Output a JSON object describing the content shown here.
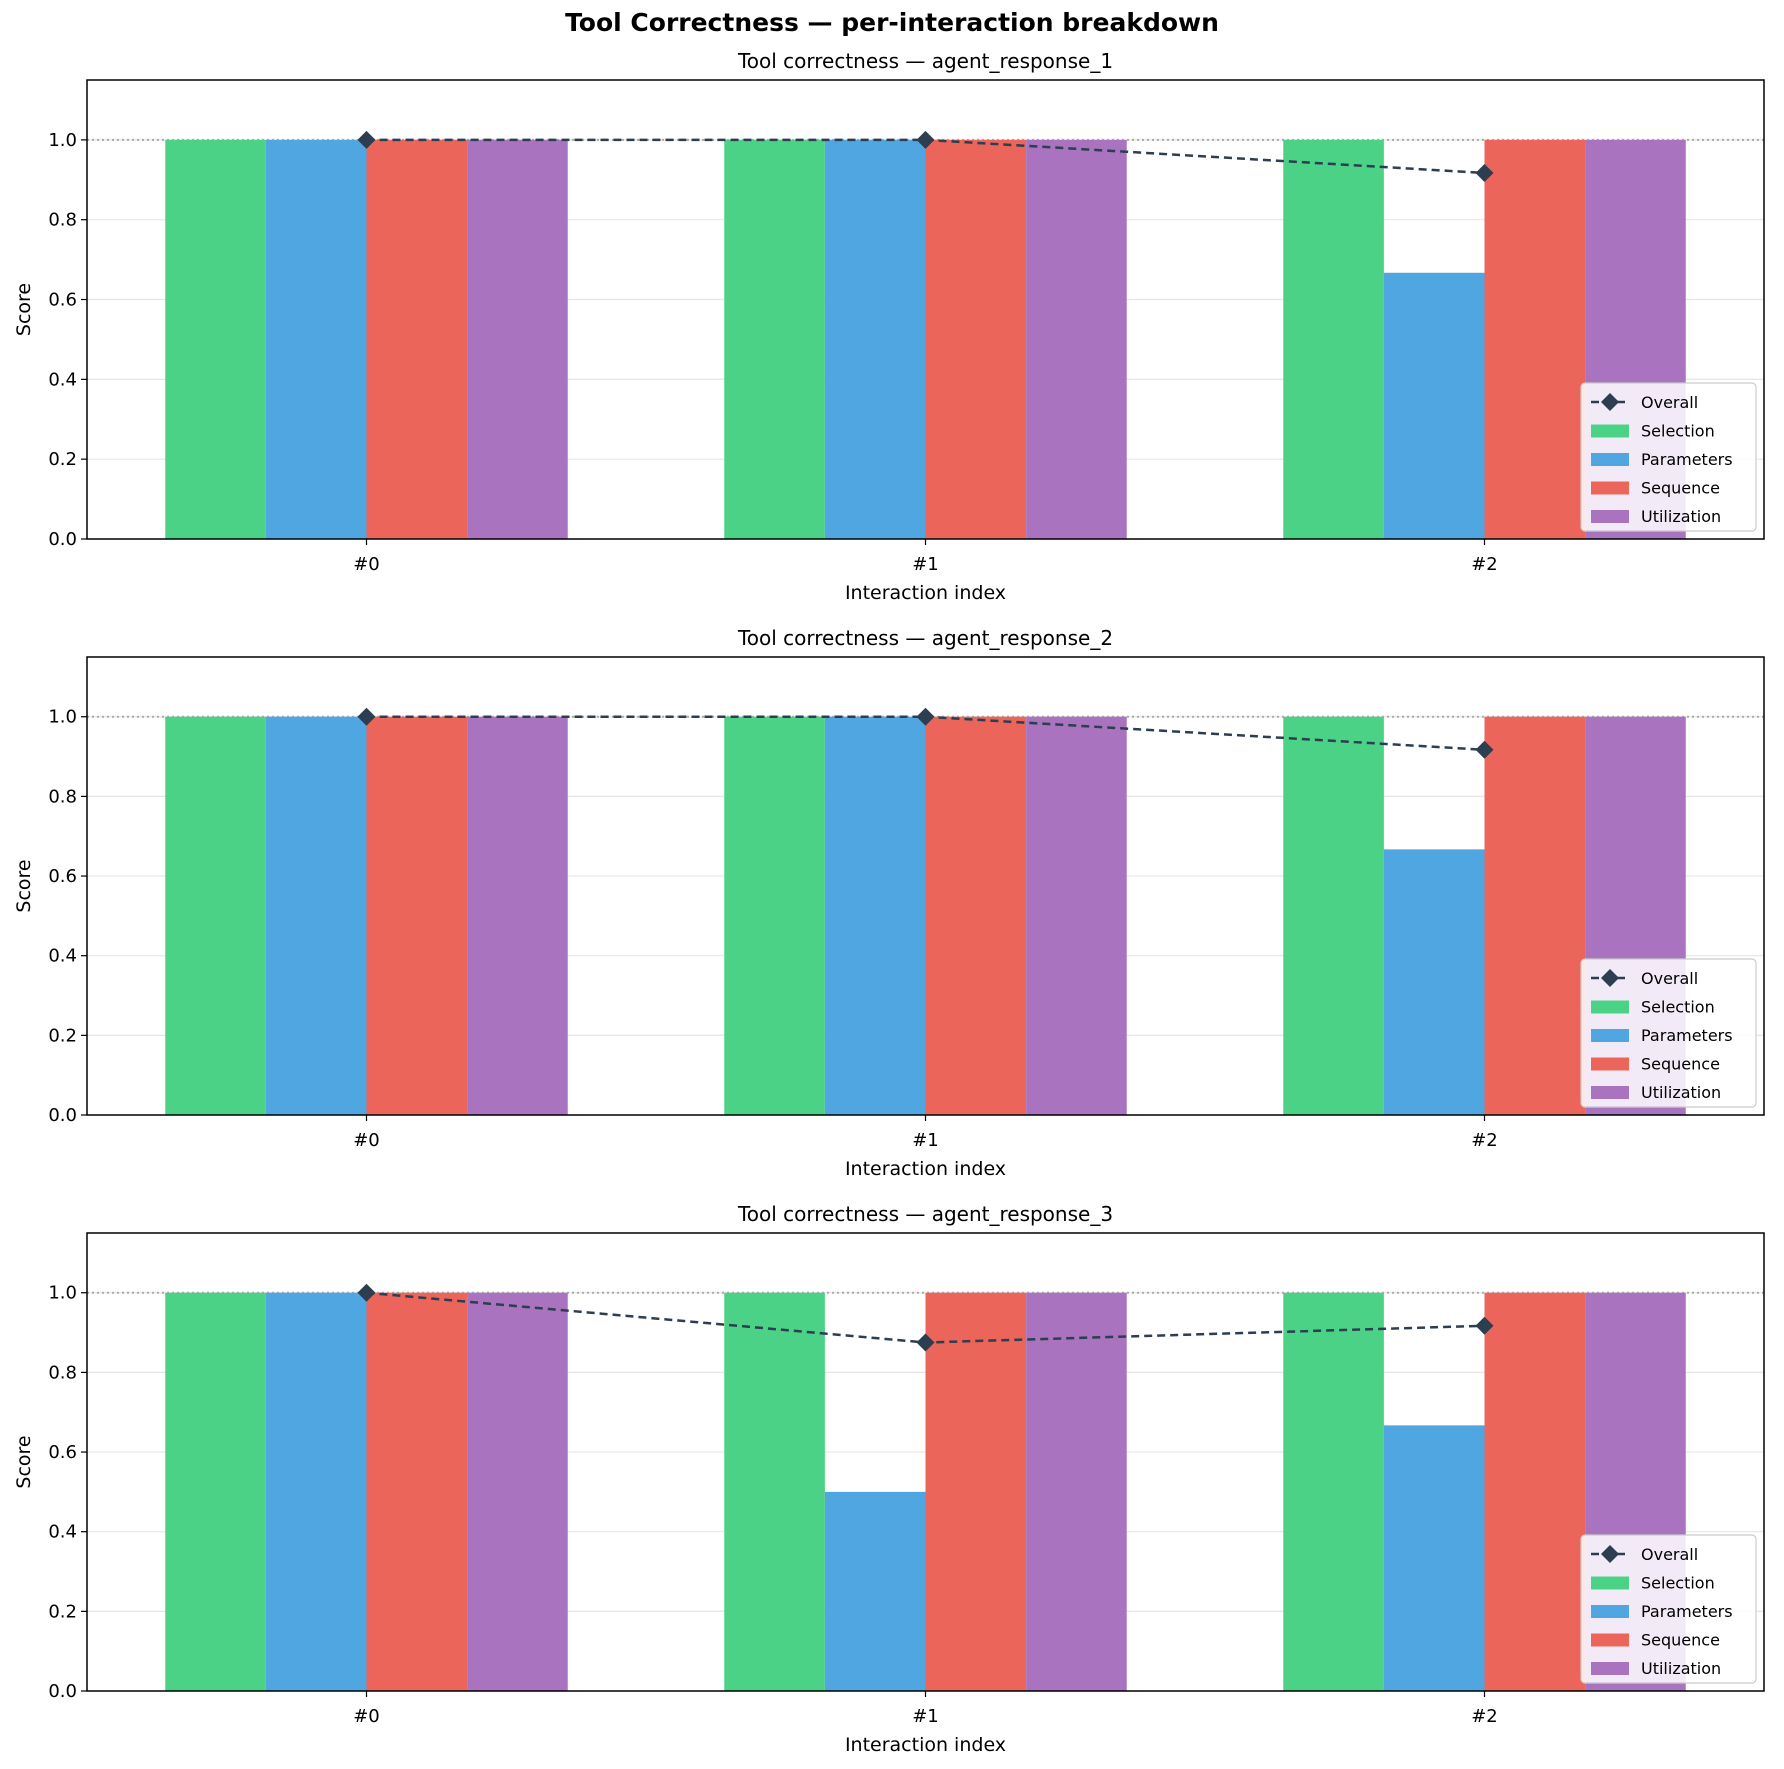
{
  "figure_title": "Tool Correctness — per-interaction breakdown",
  "colors": {
    "Selection": "#4cd286",
    "Parameters": "#4fa6e0",
    "Sequence": "#eb655a",
    "Utilization": "#a973bf",
    "Overall": "#2c3e50",
    "reference_line": "#aaaaaa",
    "grid": "#e6e6e6"
  },
  "chart_data": [
    {
      "type": "bar",
      "title": "Tool correctness — agent_response_1",
      "xlabel": "Interaction index",
      "ylabel": "Score",
      "categories": [
        "#0",
        "#1",
        "#2"
      ],
      "ylim": [
        0,
        1.15
      ],
      "yticks": [
        "0.0",
        "0.2",
        "0.4",
        "0.6",
        "0.8",
        "1.0"
      ],
      "grid": "y",
      "reference_line": 1.0,
      "legend": "lower-right",
      "series": [
        {
          "name": "Selection",
          "values": [
            1.0,
            1.0,
            1.0
          ]
        },
        {
          "name": "Parameters",
          "values": [
            1.0,
            1.0,
            0.667
          ]
        },
        {
          "name": "Sequence",
          "values": [
            1.0,
            1.0,
            1.0
          ]
        },
        {
          "name": "Utilization",
          "values": [
            1.0,
            1.0,
            1.0
          ]
        }
      ],
      "line": {
        "name": "Overall",
        "values": [
          1.0,
          1.0,
          0.917
        ]
      }
    },
    {
      "type": "bar",
      "title": "Tool correctness — agent_response_2",
      "xlabel": "Interaction index",
      "ylabel": "Score",
      "categories": [
        "#0",
        "#1",
        "#2"
      ],
      "ylim": [
        0,
        1.15
      ],
      "yticks": [
        "0.0",
        "0.2",
        "0.4",
        "0.6",
        "0.8",
        "1.0"
      ],
      "grid": "y",
      "reference_line": 1.0,
      "legend": "lower-right",
      "series": [
        {
          "name": "Selection",
          "values": [
            1.0,
            1.0,
            1.0
          ]
        },
        {
          "name": "Parameters",
          "values": [
            1.0,
            1.0,
            0.667
          ]
        },
        {
          "name": "Sequence",
          "values": [
            1.0,
            1.0,
            1.0
          ]
        },
        {
          "name": "Utilization",
          "values": [
            1.0,
            1.0,
            1.0
          ]
        }
      ],
      "line": {
        "name": "Overall",
        "values": [
          1.0,
          1.0,
          0.917
        ]
      }
    },
    {
      "type": "bar",
      "title": "Tool correctness — agent_response_3",
      "xlabel": "Interaction index",
      "ylabel": "Score",
      "categories": [
        "#0",
        "#1",
        "#2"
      ],
      "ylim": [
        0,
        1.15
      ],
      "yticks": [
        "0.0",
        "0.2",
        "0.4",
        "0.6",
        "0.8",
        "1.0"
      ],
      "grid": "y",
      "reference_line": 1.0,
      "legend": "lower-right",
      "series": [
        {
          "name": "Selection",
          "values": [
            1.0,
            1.0,
            1.0
          ]
        },
        {
          "name": "Parameters",
          "values": [
            1.0,
            0.5,
            0.667
          ]
        },
        {
          "name": "Sequence",
          "values": [
            1.0,
            1.0,
            1.0
          ]
        },
        {
          "name": "Utilization",
          "values": [
            1.0,
            1.0,
            1.0
          ]
        }
      ],
      "line": {
        "name": "Overall",
        "values": [
          1.0,
          0.875,
          0.917
        ]
      }
    }
  ]
}
